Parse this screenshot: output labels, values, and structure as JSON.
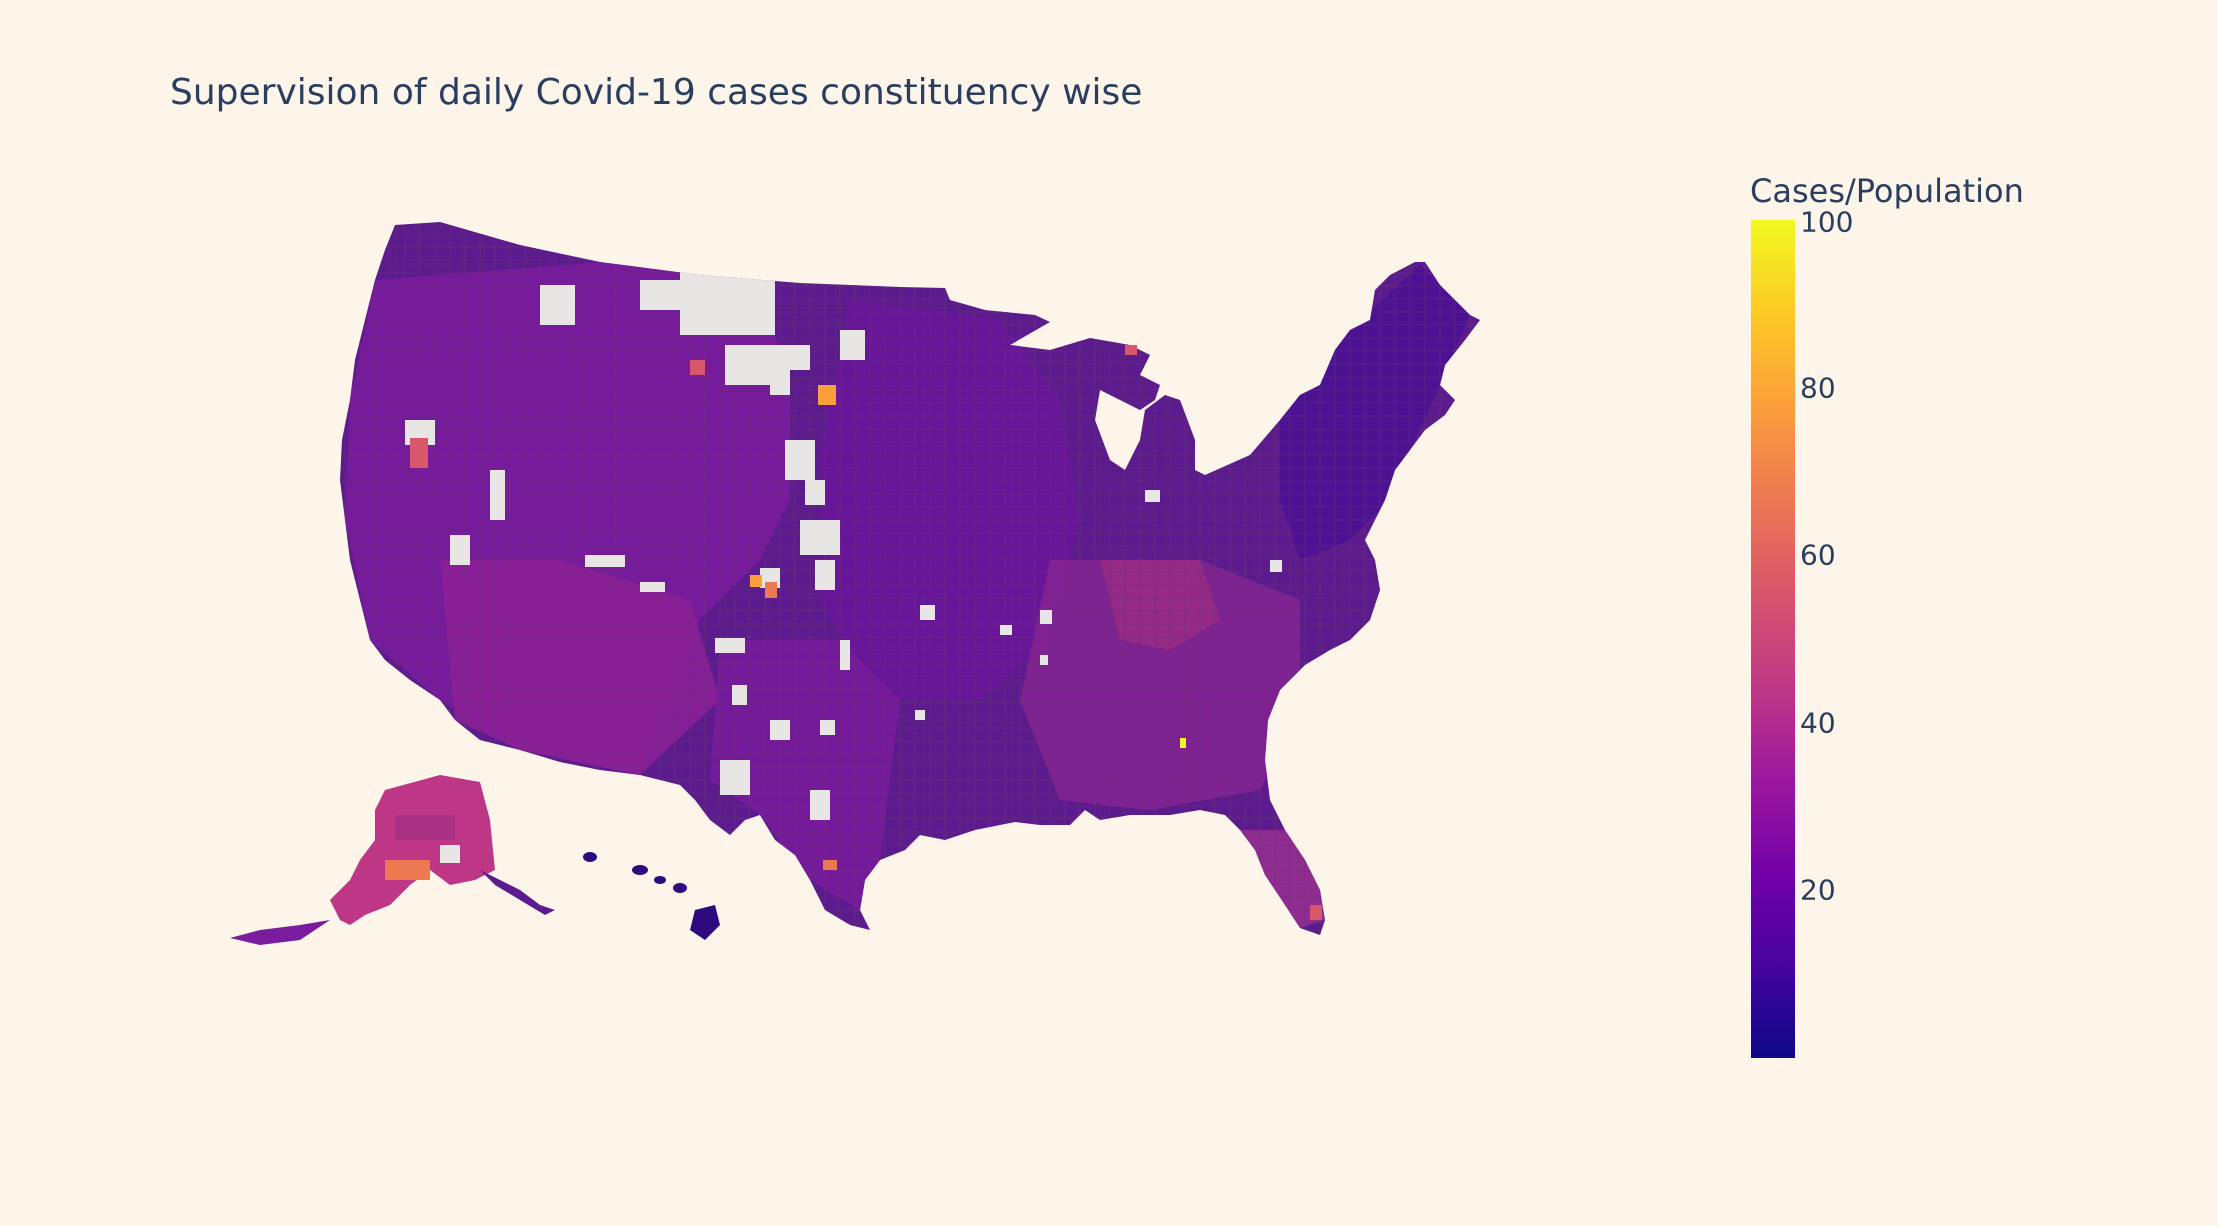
{
  "title": "Supervision of daily Covid-19 cases constituency wise",
  "colorbar": {
    "title": "Cases/Population",
    "ticks": [
      "100",
      "80",
      "60",
      "40",
      "20"
    ],
    "tick_values": [
      100,
      80,
      60,
      40,
      20
    ],
    "range": [
      0,
      100
    ],
    "colorscale": "plasma",
    "colors": [
      "#0d0887",
      "#46039f",
      "#7201a8",
      "#9c179e",
      "#bd3786",
      "#d8576b",
      "#ed7953",
      "#fb9f3a",
      "#fdca26",
      "#f0f921"
    ]
  },
  "map": {
    "region": "United States counties",
    "projection": "albers usa",
    "background": "#fdf4ea",
    "missing_data_color": "#e8e6e4",
    "dominant_value_range": [
      20,
      40
    ]
  }
}
